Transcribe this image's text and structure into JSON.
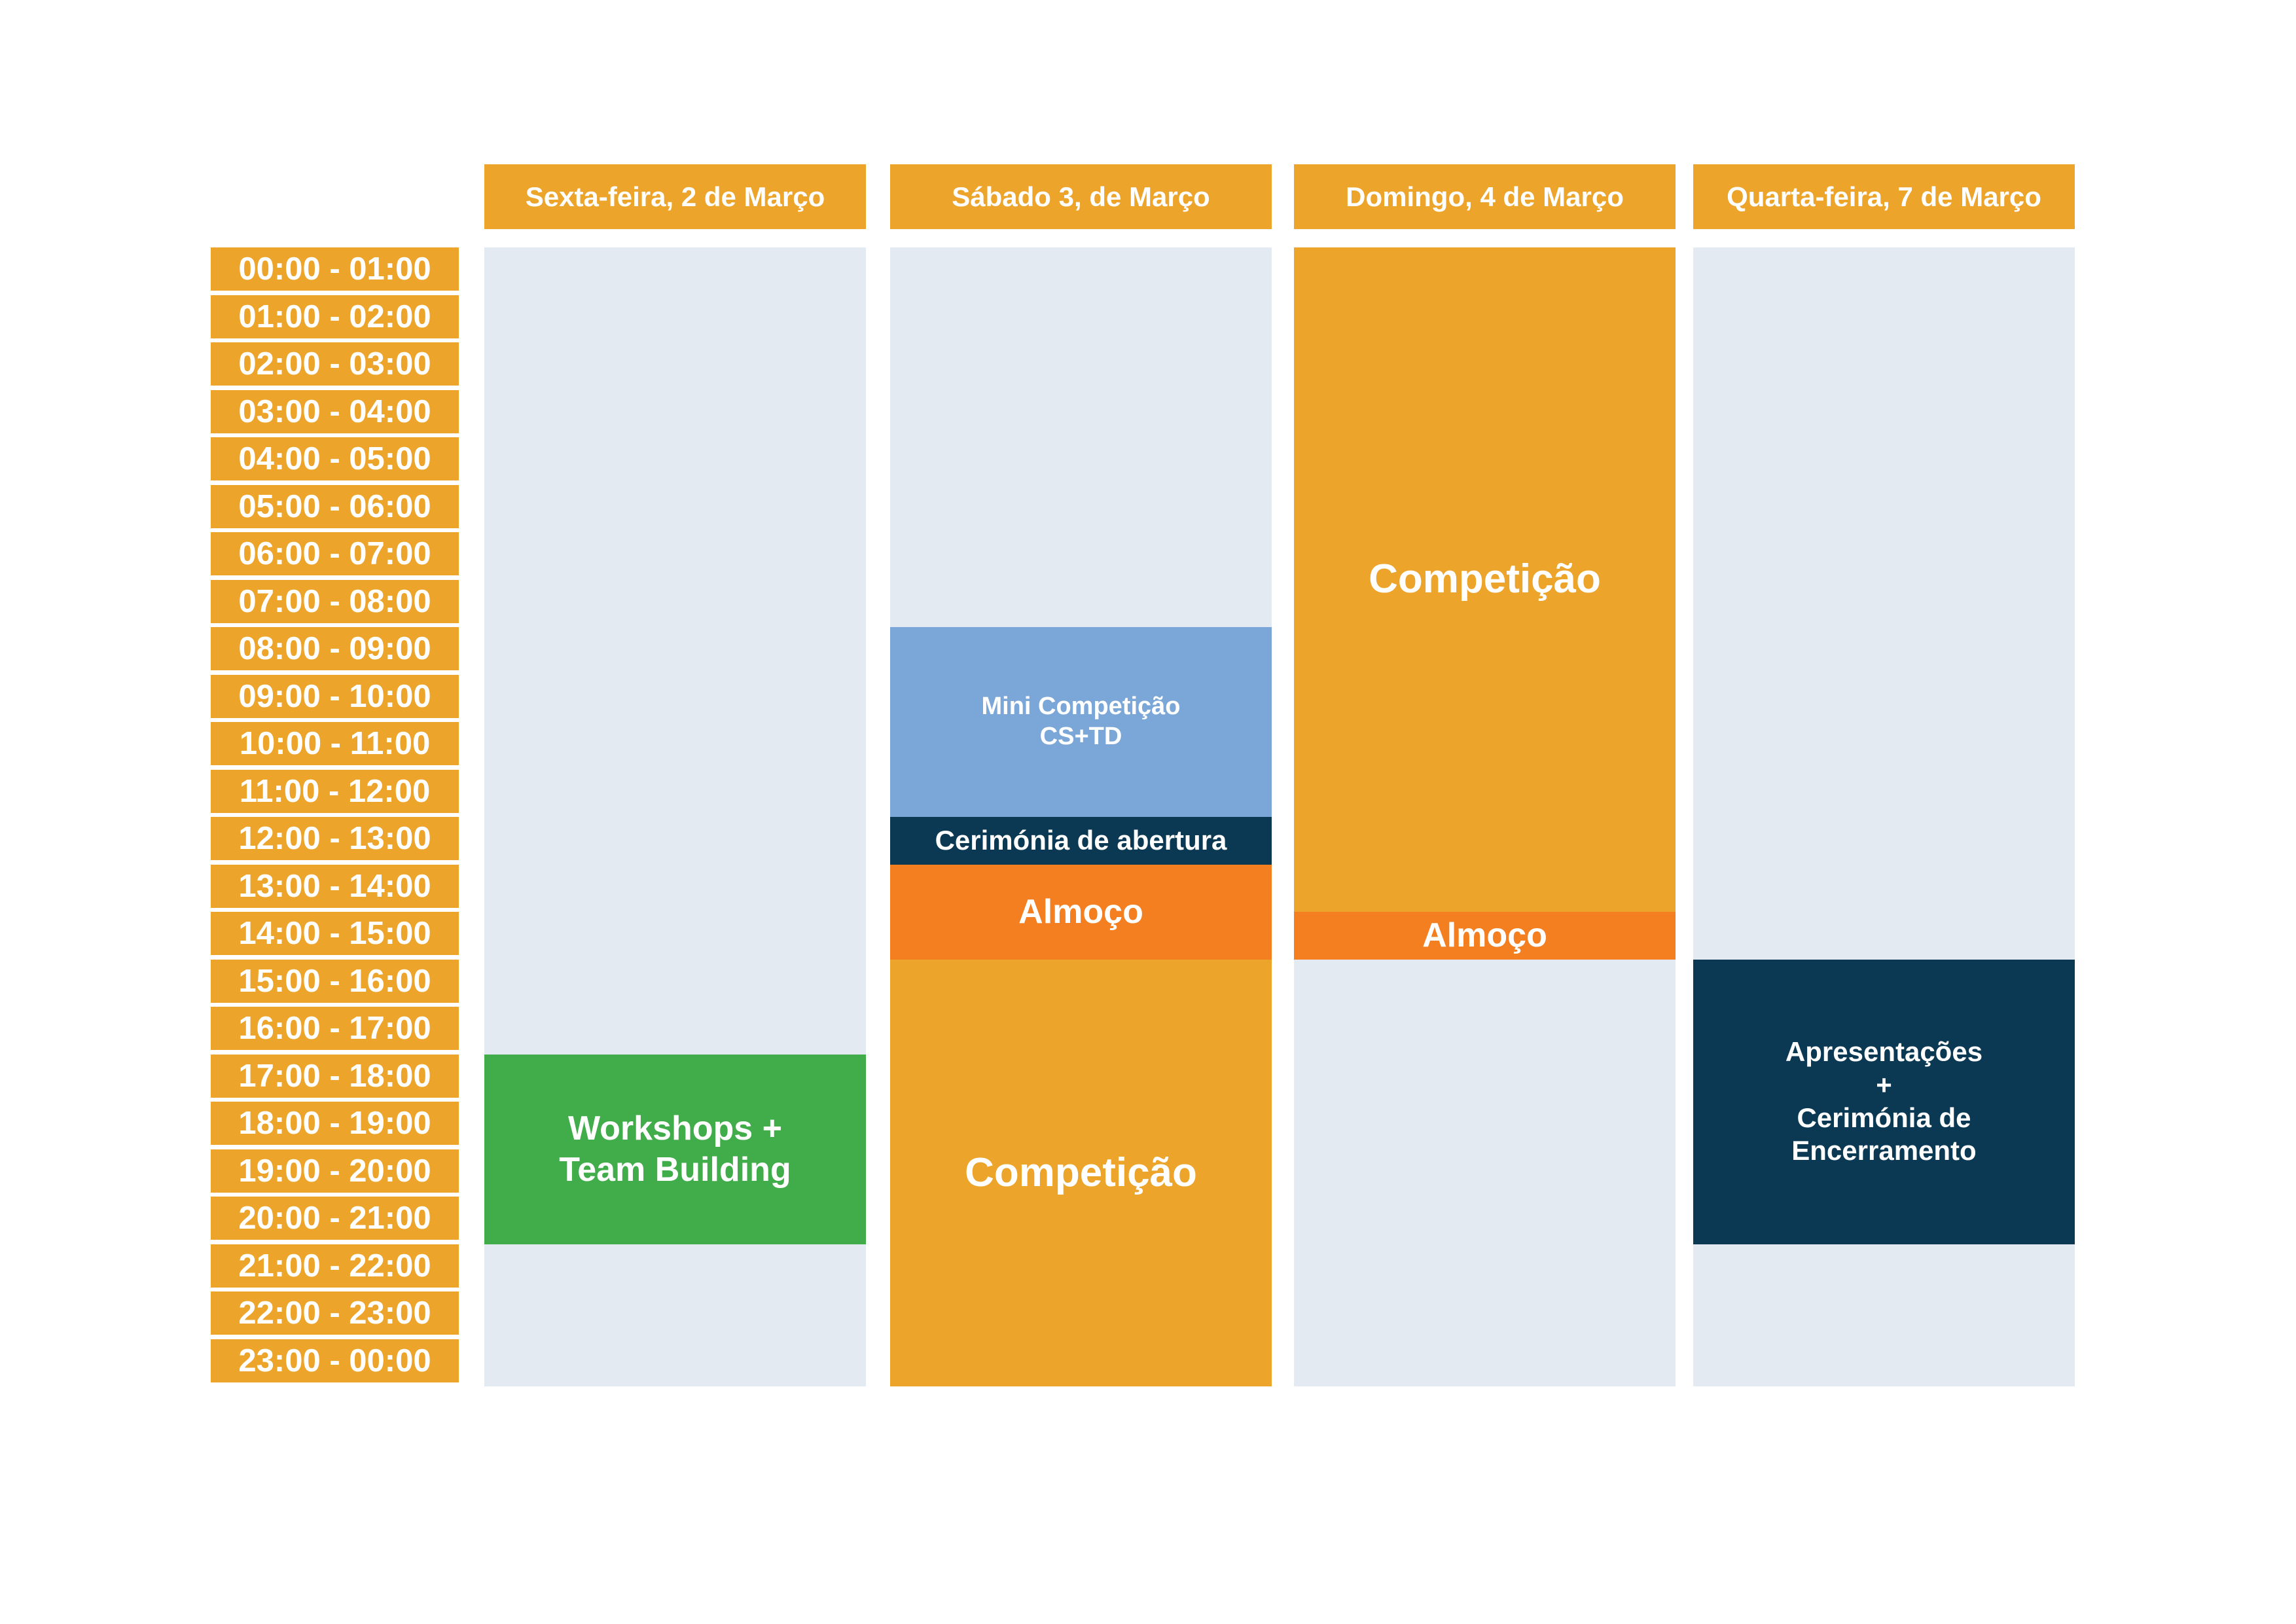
{
  "days": [
    {
      "label": "Sexta-feira, 2 de Março"
    },
    {
      "label": "Sábado 3, de Março"
    },
    {
      "label": "Domingo, 4 de Março"
    },
    {
      "label": "Quarta-feira, 7 de Março"
    }
  ],
  "time_slots": [
    "00:00 - 01:00",
    "01:00 - 02:00",
    "02:00 - 03:00",
    "03:00 - 04:00",
    "04:00 - 05:00",
    "05:00 - 06:00",
    "06:00 - 07:00",
    "07:00 - 08:00",
    "08:00 - 09:00",
    "09:00 - 10:00",
    "10:00 - 11:00",
    "11:00 - 12:00",
    "12:00 - 13:00",
    "13:00 - 14:00",
    "14:00 - 15:00",
    "15:00 - 16:00",
    "16:00 - 17:00",
    "17:00 - 18:00",
    "18:00 - 19:00",
    "19:00 - 20:00",
    "20:00 - 21:00",
    "21:00 - 22:00",
    "22:00 - 23:00",
    "23:00 - 00:00"
  ],
  "events": [
    {
      "day": 0,
      "start": 17,
      "end": 21,
      "label": "Workshops +\nTeam Building",
      "color": "#41ad4a",
      "size": "large"
    },
    {
      "day": 1,
      "start": 8,
      "end": 12,
      "label": "Mini Competição\nCS+TD",
      "color": "#7ba7d8",
      "size": "small"
    },
    {
      "day": 1,
      "start": 12,
      "end": 13,
      "label": "Cerimónia de abertura",
      "color": "#0b3954",
      "size": "medium"
    },
    {
      "day": 1,
      "start": 13,
      "end": 15,
      "label": "Almoço",
      "color": "#f37f21",
      "size": "large"
    },
    {
      "day": 1,
      "start": 15,
      "end": 24,
      "label": "Competição",
      "color": "#eca42b",
      "size": "xlarge"
    },
    {
      "day": 2,
      "start": 0,
      "end": 14,
      "label": "Competição",
      "color": "#eca42b",
      "size": "xlarge"
    },
    {
      "day": 2,
      "start": 14,
      "end": 15,
      "label": "Almoço",
      "color": "#f37f21",
      "size": "large"
    },
    {
      "day": 3,
      "start": 15,
      "end": 21,
      "label": "Apresentações\n+\nCerimónia de\nEncerramento",
      "color": "#0b3954",
      "size": "medium"
    }
  ],
  "colors": {
    "header": "#eca42b",
    "time_cell": "#eca42b",
    "column_bg": "#e3eaf2"
  }
}
